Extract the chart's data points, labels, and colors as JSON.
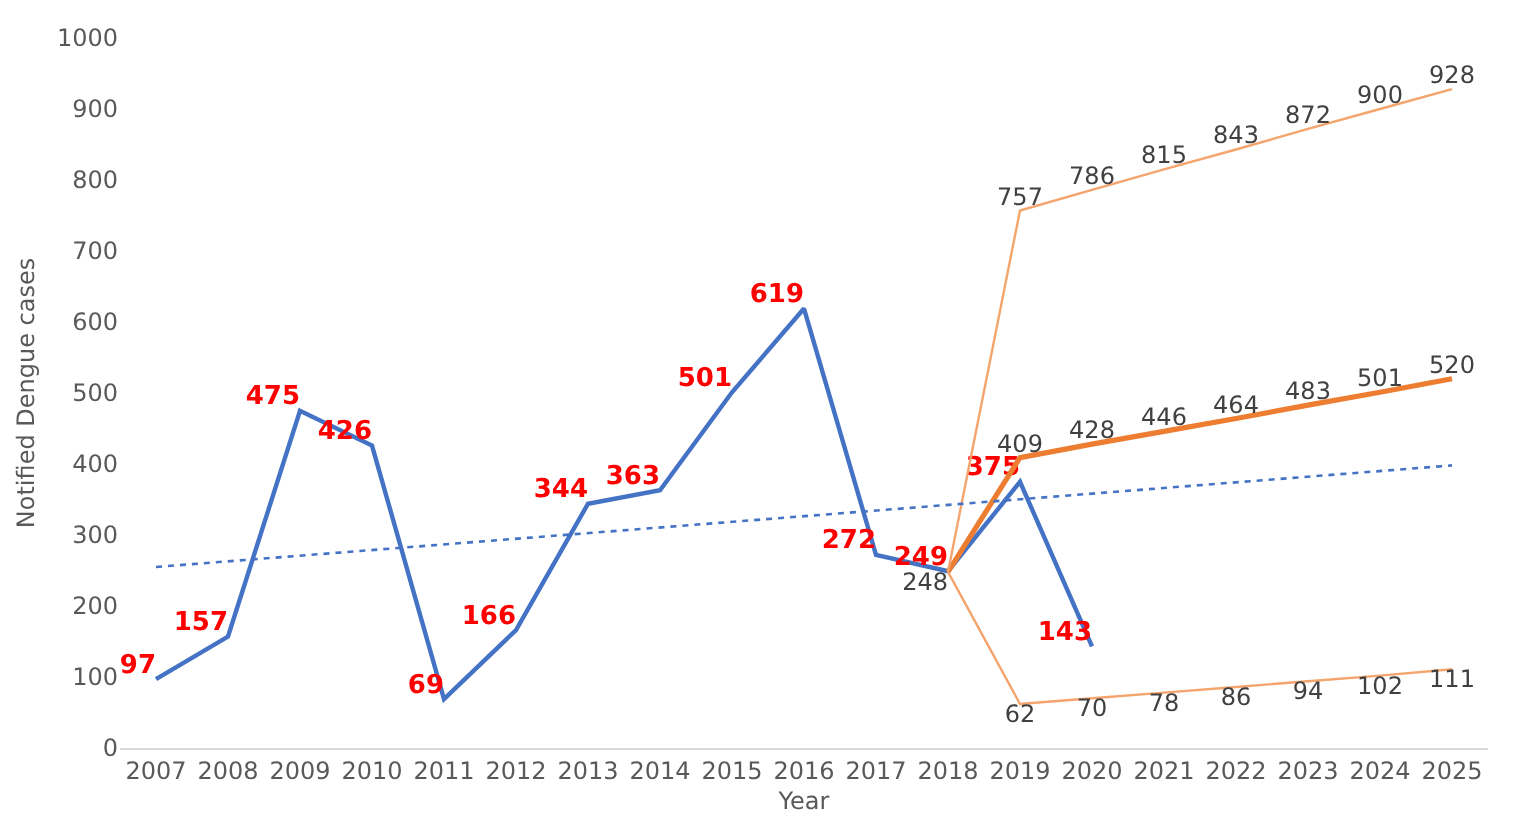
{
  "chart_data": {
    "type": "line",
    "xlabel": "Year",
    "ylabel": "Notified Dengue cases",
    "xlim": [
      2006.5,
      2025.5
    ],
    "xticks": [
      2007,
      2008,
      2009,
      2010,
      2011,
      2012,
      2013,
      2014,
      2015,
      2016,
      2017,
      2018,
      2019,
      2020,
      2021,
      2022,
      2023,
      2024,
      2025
    ],
    "ylim": [
      0,
      1000
    ],
    "yticks": [
      0,
      100,
      200,
      300,
      400,
      500,
      600,
      700,
      800,
      900,
      1000
    ],
    "grid": false,
    "marker": "none",
    "series": [
      {
        "color": "#4472c4",
        "x": [
          2007,
          2008,
          2009,
          2010,
          2011,
          2012,
          2013,
          2014,
          2015,
          2016,
          2017,
          2018,
          2019,
          2020
        ],
        "values": [
          97,
          157,
          475,
          426,
          69,
          166,
          344,
          363,
          501,
          619,
          272,
          249,
          375,
          143
        ],
        "value_labels": [
          "97",
          "157",
          "475",
          "426",
          "69",
          "166",
          "344",
          "363",
          "501",
          "619",
          "272",
          "249",
          "375",
          "143"
        ]
      },
      {
        "color": "#ed7d31",
        "x": [
          2018,
          2019,
          2020,
          2021,
          2022,
          2023,
          2024,
          2025
        ],
        "values": [
          248,
          409,
          428,
          446,
          464,
          483,
          501,
          520
        ],
        "value_labels": [
          "248",
          "409",
          "428",
          "446",
          "464",
          "483",
          "501",
          "520"
        ]
      },
      {
        "color": "#f4a46c",
        "x": [
          2018,
          2019,
          2020,
          2021,
          2022,
          2023,
          2024,
          2025
        ],
        "values": [
          248,
          757,
          786,
          815,
          843,
          872,
          900,
          928
        ],
        "value_labels": [
          null,
          "757",
          "786",
          "815",
          "843",
          "872",
          "900",
          "928"
        ]
      },
      {
        "color": "#f4a46c",
        "x": [
          2018,
          2019,
          2020,
          2021,
          2022,
          2023,
          2024,
          2025
        ],
        "values": [
          248,
          62,
          70,
          78,
          86,
          94,
          102,
          111
        ],
        "value_labels": [
          null,
          "62",
          "70",
          "78",
          "86",
          "94",
          "102",
          "111"
        ]
      },
      {
        "color": "#4472c4",
        "line_style": "dotted",
        "x": [
          2007,
          2025
        ],
        "values": [
          255,
          398
        ]
      }
    ]
  }
}
